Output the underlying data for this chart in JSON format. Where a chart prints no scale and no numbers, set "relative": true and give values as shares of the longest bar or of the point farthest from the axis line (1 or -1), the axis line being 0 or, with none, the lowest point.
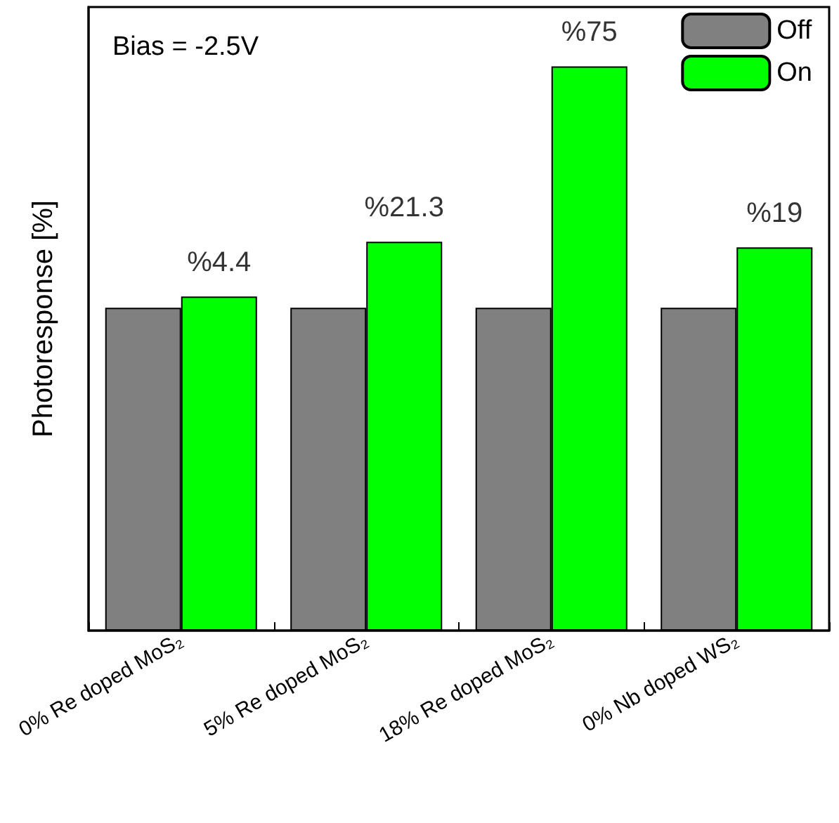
{
  "chart_data": {
    "type": "bar",
    "relative": true,
    "ylabel": "Photoresponse [%]",
    "annotations": [
      "Bias = -2.5V",
      {
        "text": "%4.4",
        "x": "0% Re doped MoS₂",
        "y": 0.592
      },
      {
        "text": "%21.3",
        "x": "5% Re doped MoS₂",
        "y": 0.689
      },
      {
        "text": "%75",
        "x": "18% Re doped MoS₂",
        "y": 1
      },
      {
        "text": "%19",
        "x": "0% Nb doped WS₂",
        "y": 0.679
      }
    ],
    "categories": [
      "0% Re doped MoS₂",
      "5% Re doped MoS₂",
      "18% Re doped MoS₂",
      "0% Nb doped WS₂"
    ],
    "series": [
      {
        "name": "Off",
        "color": "#808080",
        "values": [
          0.572,
          0.572,
          0.572,
          0.572
        ]
      },
      {
        "name": "On",
        "color": "#00ff00",
        "values": [
          0.592,
          0.689,
          1,
          0.679
        ]
      }
    ],
    "legend": "top right",
    "grid": false
  }
}
